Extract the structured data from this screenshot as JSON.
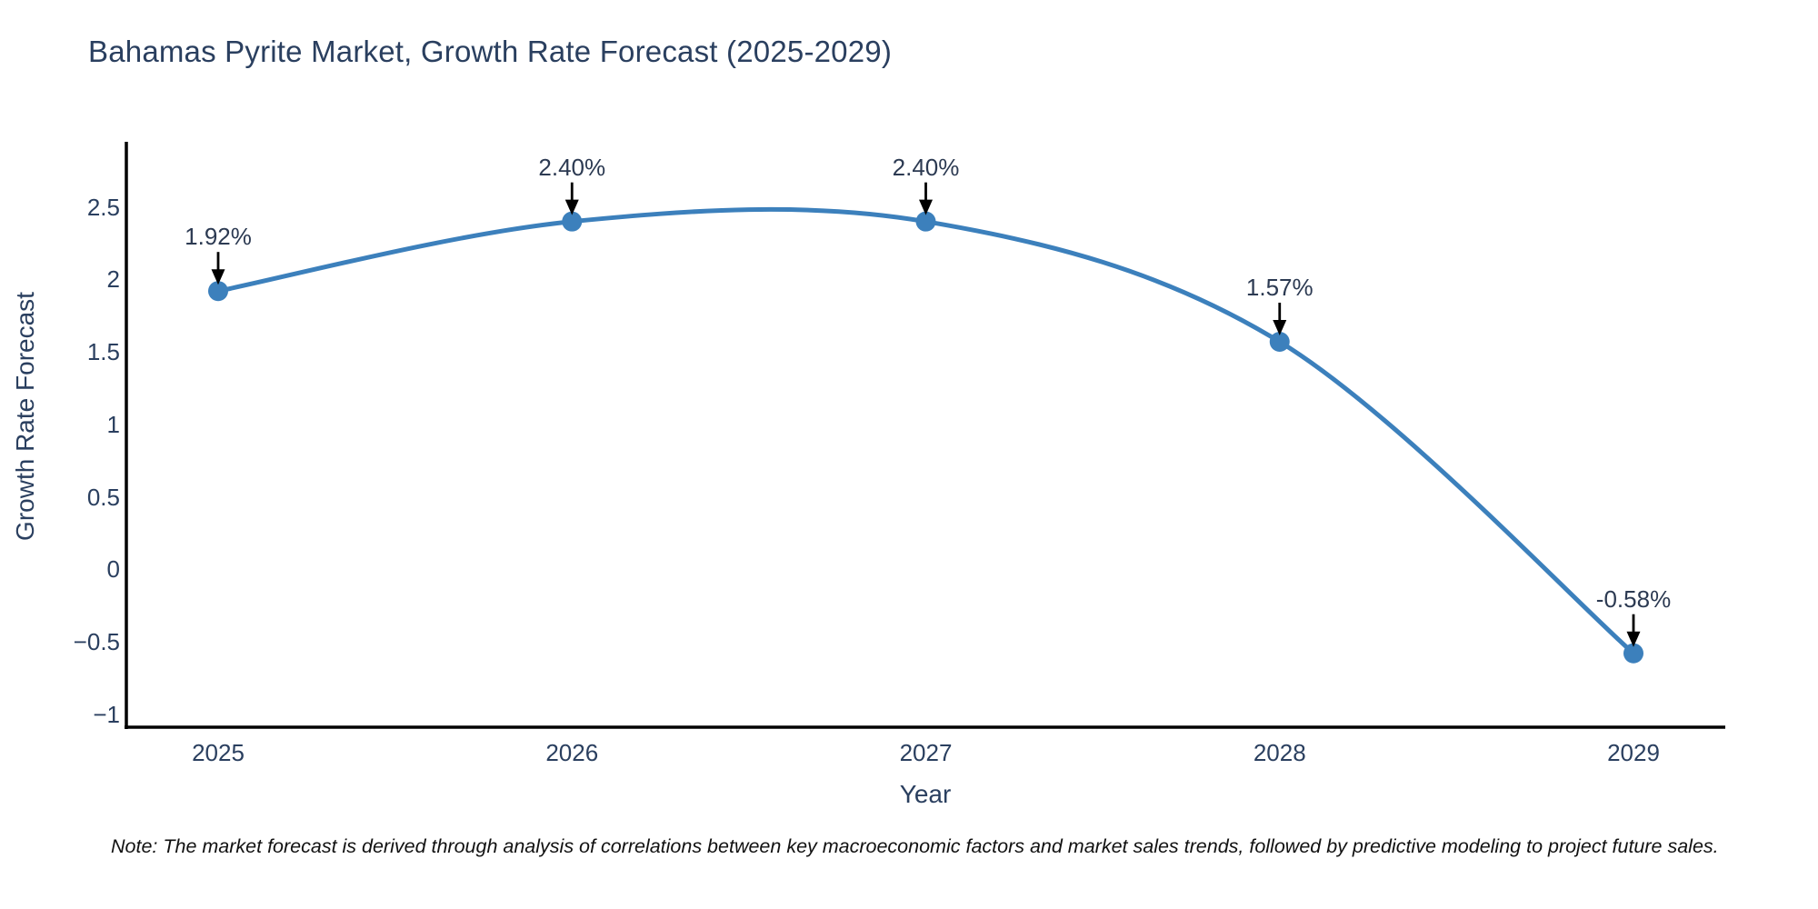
{
  "chart_data": {
    "type": "line",
    "title": "Bahamas Pyrite Market, Growth Rate Forecast (2025-2029)",
    "xlabel": "Year",
    "ylabel": "Growth Rate Forecast",
    "categories": [
      "2025",
      "2026",
      "2027",
      "2028",
      "2029"
    ],
    "values": [
      1.92,
      2.4,
      2.4,
      1.57,
      -0.58
    ],
    "point_labels": [
      "1.92%",
      "2.40%",
      "2.40%",
      "1.57%",
      "-0.58%"
    ],
    "yticks": [
      {
        "label": "2.5",
        "value": 2.5
      },
      {
        "label": "2",
        "value": 2.0
      },
      {
        "label": "1.5",
        "value": 1.5
      },
      {
        "label": "1",
        "value": 1.0
      },
      {
        "label": "0.5",
        "value": 0.5
      },
      {
        "label": "0",
        "value": 0.0
      },
      {
        "label": "−0.5",
        "value": -0.5
      },
      {
        "label": "−1",
        "value": -1.0
      }
    ],
    "ylim": [
      -1.09,
      2.95
    ],
    "line_shape": "spline",
    "grid": false,
    "legend": false,
    "line_color": "#3c80bc",
    "marker_color": "#3c80bc",
    "axis_line_color": "#000000",
    "arrow_color": "#000000",
    "note": "Note: The market forecast is derived through analysis of correlations between key macroeconomic factors and market sales trends, followed by predictive modeling to project future sales."
  }
}
